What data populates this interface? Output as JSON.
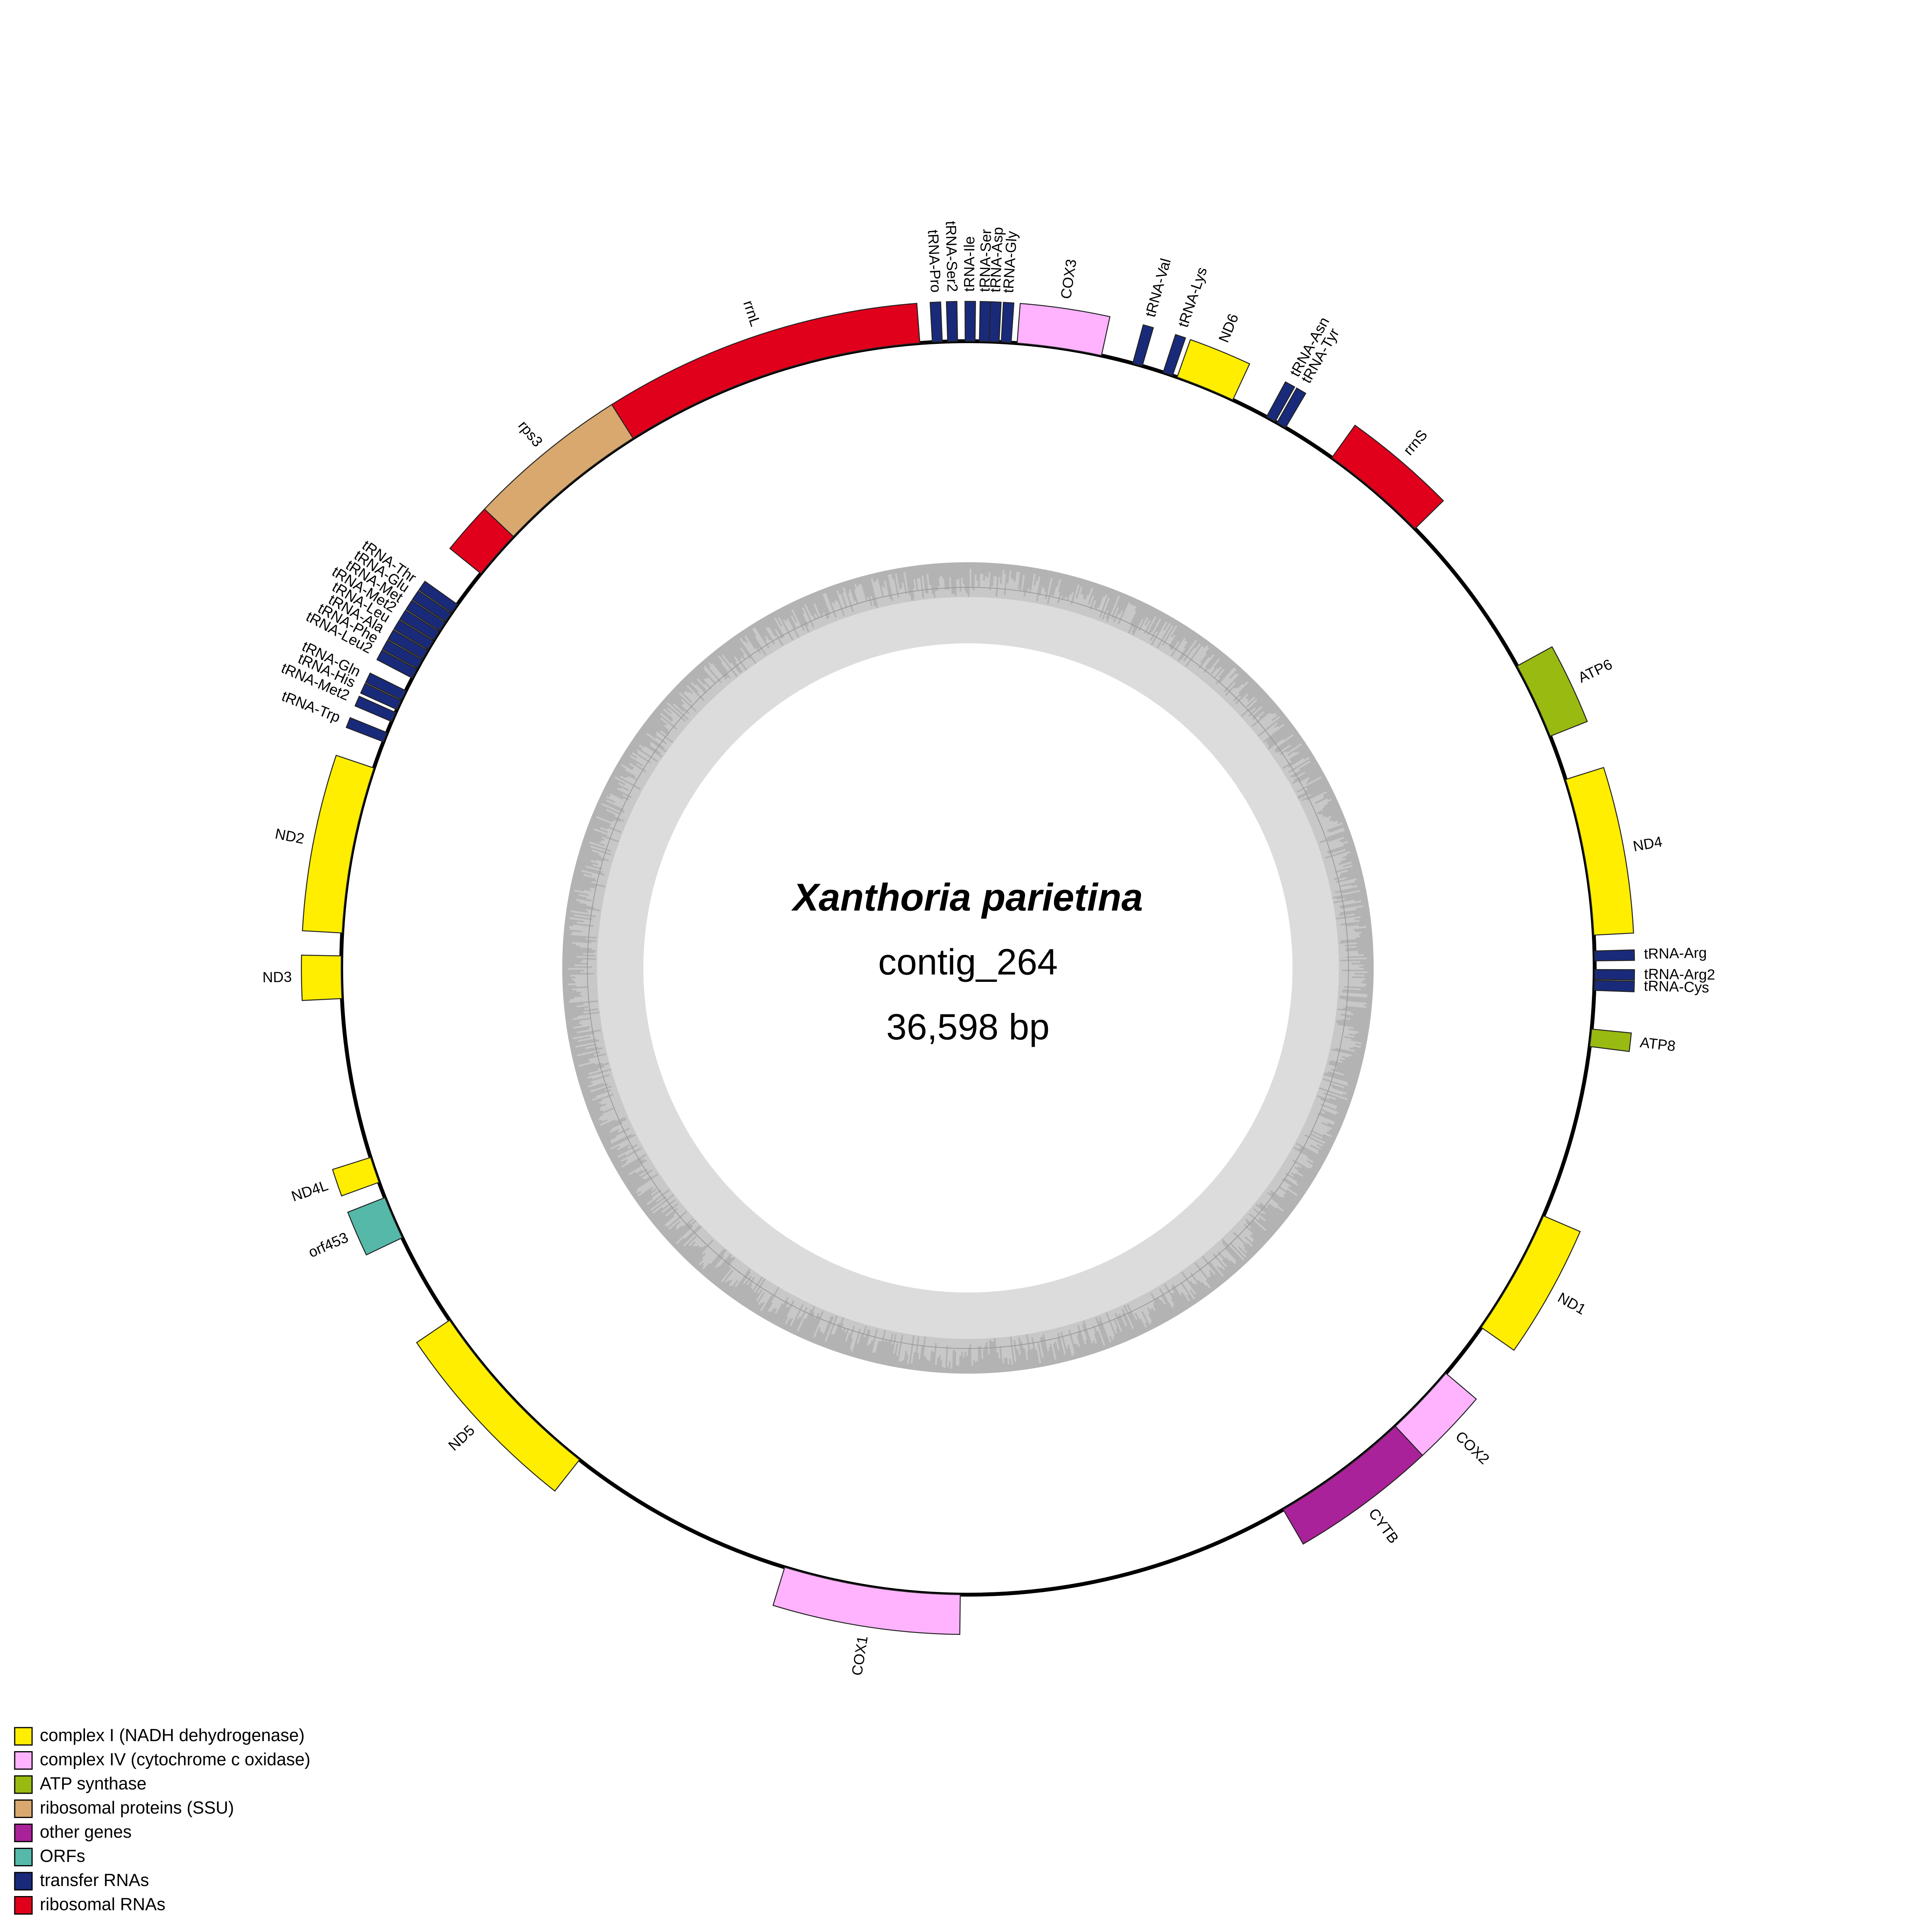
{
  "title": "Xanthoria parietina",
  "subtitle": "contig_264",
  "length": "36,598 bp",
  "legend": [
    {
      "label": "complex I (NADH dehydrogenase)",
      "color": "#ffee00"
    },
    {
      "label": "complex IV (cytochrome c oxidase)",
      "color": "#ffb3ff"
    },
    {
      "label": "ATP synthase",
      "color": "#99bb11"
    },
    {
      "label": "ribosomal proteins (SSU)",
      "color": "#d8a86e"
    },
    {
      "label": "other genes",
      "color": "#aa2299"
    },
    {
      "label": "ORFs",
      "color": "#55b8a8"
    },
    {
      "label": "transfer RNAs",
      "color": "#1a2a7a"
    },
    {
      "label": "ribosomal RNAs",
      "color": "#e0001b"
    }
  ],
  "genes": [
    {
      "label": "tRNA-Ile",
      "color": "#1a2a7a"
    },
    {
      "label": "tRNA-Ser",
      "color": "#1a2a7a"
    },
    {
      "label": "tRNA-Asp",
      "color": "#1a2a7a"
    },
    {
      "label": "tRNA-Gly",
      "color": "#1a2a7a"
    },
    {
      "label": "COX3",
      "color": "#ffb3ff"
    },
    {
      "label": "tRNA-Val",
      "color": "#1a2a7a"
    },
    {
      "label": "tRNA-Lys",
      "color": "#1a2a7a"
    },
    {
      "label": "ND6",
      "color": "#ffee00"
    },
    {
      "label": "tRNA-Asn",
      "color": "#1a2a7a"
    },
    {
      "label": "tRNA-Tyr",
      "color": "#1a2a7a"
    },
    {
      "label": "rrnS",
      "color": "#e0001b"
    },
    {
      "label": "ATP6",
      "color": "#99bb11"
    },
    {
      "label": "ND4",
      "color": "#ffee00"
    },
    {
      "label": "tRNA-Arg",
      "color": "#1a2a7a"
    },
    {
      "label": "tRNA-Arg2",
      "color": "#1a2a7a"
    },
    {
      "label": "tRNA-Cys",
      "color": "#1a2a7a"
    },
    {
      "label": "ATP8",
      "color": "#99bb11"
    },
    {
      "label": "ND1",
      "color": "#ffee00"
    },
    {
      "label": "COX2",
      "color": "#ffb3ff"
    },
    {
      "label": "CYTB",
      "color": "#aa2299"
    },
    {
      "label": "COX1",
      "color": "#ffb3ff"
    },
    {
      "label": "ND5",
      "color": "#ffee00"
    },
    {
      "label": "orf453",
      "color": "#55b8a8"
    },
    {
      "label": "ND4L",
      "color": "#ffee00"
    },
    {
      "label": "ND3",
      "color": "#ffee00"
    },
    {
      "label": "ND2",
      "color": "#ffee00"
    },
    {
      "label": "tRNA-Trp",
      "color": "#1a2a7a"
    },
    {
      "label": "tRNA-Met2",
      "color": "#1a2a7a"
    },
    {
      "label": "tRNA-His",
      "color": "#1a2a7a"
    },
    {
      "label": "tRNA-Gln",
      "color": "#1a2a7a"
    },
    {
      "label": "tRNA-Leu2",
      "color": "#1a2a7a"
    },
    {
      "label": "tRNA-Phe",
      "color": "#1a2a7a"
    },
    {
      "label": "tRNA-Ala",
      "color": "#1a2a7a"
    },
    {
      "label": "tRNA-Leu",
      "color": "#1a2a7a"
    },
    {
      "label": "tRNA-Met2",
      "color": "#1a2a7a"
    },
    {
      "label": "tRNA-Met",
      "color": "#1a2a7a"
    },
    {
      "label": "tRNA-Glu",
      "color": "#1a2a7a"
    },
    {
      "label": "tRNA-Thr",
      "color": "#1a2a7a"
    },
    {
      "label": "rps3",
      "color": "#d8a86e"
    },
    {
      "label": "rrnL",
      "color": "#e0001b"
    },
    {
      "label": "tRNA-Pro",
      "color": "#1a2a7a"
    },
    {
      "label": "tRNA-Ser2",
      "color": "#1a2a7a"
    }
  ]
}
